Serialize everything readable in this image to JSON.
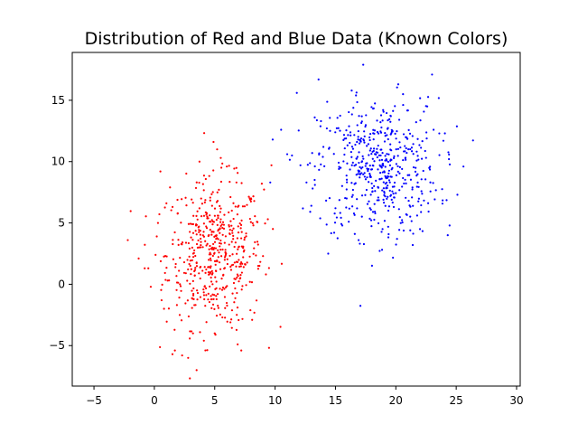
{
  "chart_data": {
    "type": "scatter",
    "title": "Distribution of Red and Blue Data (Known Colors)",
    "xlabel": "",
    "ylabel": "",
    "xlim": [
      -6.8,
      30.3
    ],
    "ylim": [
      -8.3,
      18.9
    ],
    "xticks": [
      -5,
      0,
      5,
      10,
      15,
      20,
      25,
      30
    ],
    "yticks": [
      -5,
      0,
      5,
      10,
      15
    ],
    "grid": false,
    "legend": "none",
    "series": [
      {
        "color": "#ff0000",
        "cluster": {
          "n": 500,
          "center": [
            5,
            2.5
          ],
          "std": [
            2.0,
            3.0
          ]
        },
        "points": [
          [
            -2.2,
            3.6
          ],
          [
            -1.3,
            2.1
          ],
          [
            -0.8,
            1.3
          ],
          [
            -0.5,
            1.3
          ],
          [
            0.1,
            2.4
          ],
          [
            0.3,
            5.0
          ],
          [
            0.5,
            9.2
          ],
          [
            0.6,
            -1.3
          ],
          [
            0.8,
            -2.0
          ],
          [
            1.0,
            6.6
          ],
          [
            1.3,
            7.9
          ],
          [
            1.5,
            -5.7
          ],
          [
            1.7,
            -5.4
          ],
          [
            2.3,
            -5.8
          ],
          [
            2.8,
            -6.0
          ],
          [
            3.5,
            -7.0
          ],
          [
            4.1,
            -4.6
          ],
          [
            5.0,
            -4.0
          ],
          [
            7.2,
            -5.4
          ],
          [
            6.9,
            -4.9
          ],
          [
            8.2,
            4.8
          ],
          [
            8.5,
            5.1
          ],
          [
            9.4,
            5.3
          ],
          [
            9.7,
            9.7
          ],
          [
            4.9,
            11.6
          ],
          [
            5.2,
            11.0
          ],
          [
            6.0,
            9.6
          ],
          [
            6.8,
            8.3
          ],
          [
            7.9,
            7.0
          ],
          [
            8.6,
            1.5
          ],
          [
            9.0,
            2.3
          ],
          [
            8.1,
            -2.9
          ],
          [
            6.3,
            -3.1
          ],
          [
            3.2,
            -4.0
          ],
          [
            2.1,
            -2.5
          ],
          [
            1.1,
            0.3
          ],
          [
            0.2,
            3.9
          ],
          [
            8.9,
            8.2
          ],
          [
            5.5,
            10.3
          ]
        ]
      },
      {
        "color": "#0000ff",
        "cluster": {
          "n": 500,
          "center": [
            18.5,
            9.5
          ],
          "std": [
            2.5,
            2.8
          ]
        },
        "points": [
          [
            9.6,
            8.3
          ],
          [
            9.8,
            11.8
          ],
          [
            10.5,
            12.6
          ],
          [
            11.8,
            15.6
          ],
          [
            12.6,
            8.3
          ],
          [
            13.3,
            8.1
          ],
          [
            13.6,
            16.7
          ],
          [
            14.4,
            2.5
          ],
          [
            16.7,
            15.4
          ],
          [
            17.3,
            17.9
          ],
          [
            20.2,
            16.3
          ],
          [
            21.4,
            3.2
          ],
          [
            22.0,
            4.5
          ],
          [
            23.0,
            17.1
          ],
          [
            24.3,
            4.0
          ],
          [
            25.1,
            7.3
          ],
          [
            25.6,
            9.6
          ],
          [
            16.1,
            5.1
          ],
          [
            15.0,
            6.2
          ],
          [
            13.0,
            6.4
          ],
          [
            14.0,
            11.2
          ],
          [
            13.8,
            13.3
          ],
          [
            22.6,
            14.5
          ],
          [
            24.4,
            10.2
          ],
          [
            20.1,
            3.7
          ],
          [
            18.9,
            4.5
          ],
          [
            16.6,
            4.1
          ],
          [
            12.1,
            9.7
          ],
          [
            11.4,
            10.5
          ],
          [
            23.6,
            12.3
          ]
        ]
      }
    ]
  }
}
